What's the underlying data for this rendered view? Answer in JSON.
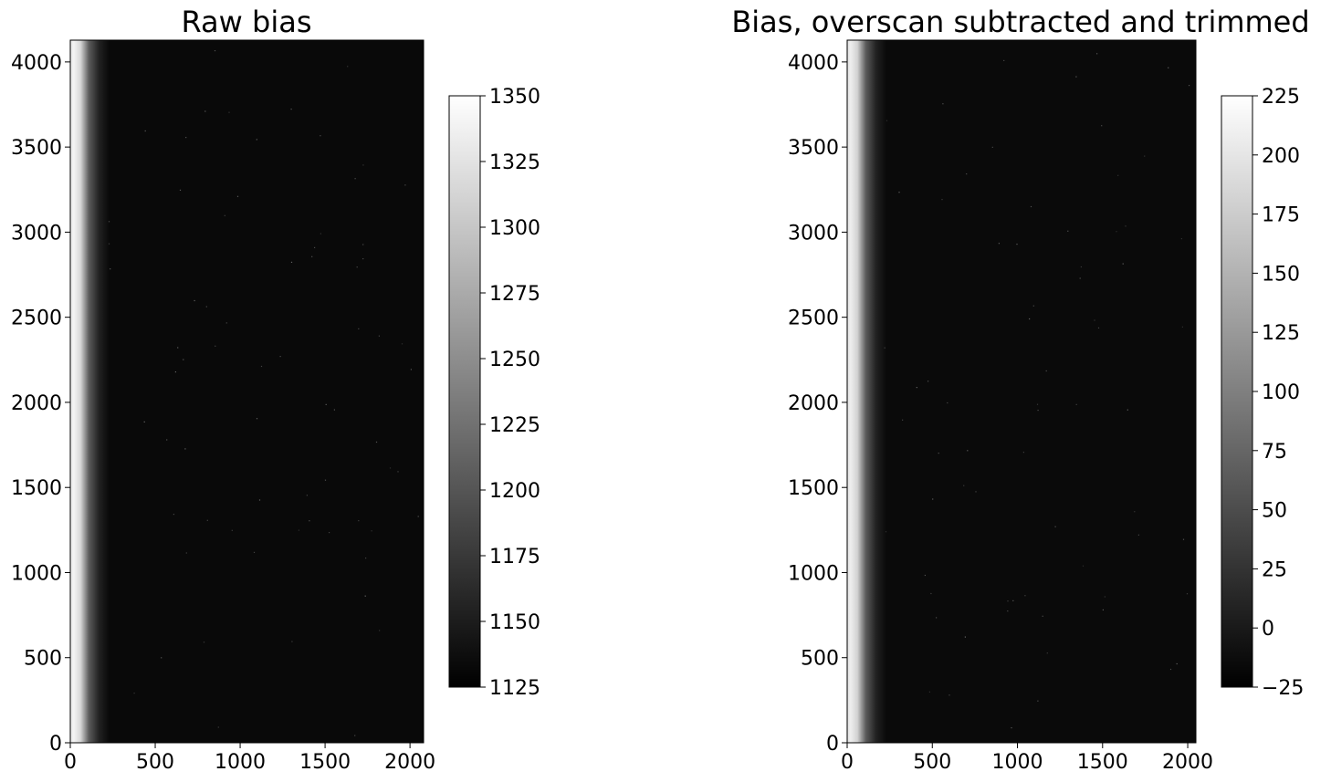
{
  "chart_data": [
    {
      "type": "heatmap",
      "title": "Raw bias",
      "xlim": [
        0,
        2080
      ],
      "ylim": [
        0,
        4128
      ],
      "xticks": [
        0,
        500,
        1000,
        1500,
        2000
      ],
      "yticks": [
        0,
        500,
        1000,
        1500,
        2000,
        2500,
        3000,
        3500,
        4000
      ],
      "colormap": "gray",
      "colorbar": {
        "range": [
          1125,
          1350
        ],
        "ticks": [
          1125,
          1150,
          1175,
          1200,
          1225,
          1250,
          1275,
          1300,
          1325,
          1350
        ]
      },
      "profile": {
        "edge_value": 1340,
        "background_value": 1133,
        "edge_columns": [
          20,
          230
        ]
      }
    },
    {
      "type": "heatmap",
      "title": "Bias, overscan subtracted and trimmed",
      "xlim": [
        0,
        2048
      ],
      "ylim": [
        0,
        4128
      ],
      "xticks": [
        0,
        500,
        1000,
        1500,
        2000
      ],
      "yticks": [
        0,
        500,
        1000,
        1500,
        2000,
        2500,
        3000,
        3500,
        4000
      ],
      "colormap": "gray",
      "colorbar": {
        "range": [
          -25,
          225
        ],
        "ticks": [
          -25,
          0,
          25,
          50,
          75,
          100,
          125,
          150,
          175,
          200,
          225
        ]
      },
      "profile": {
        "edge_value": 208,
        "background_value": -15,
        "edge_columns": [
          20,
          230
        ]
      }
    }
  ]
}
